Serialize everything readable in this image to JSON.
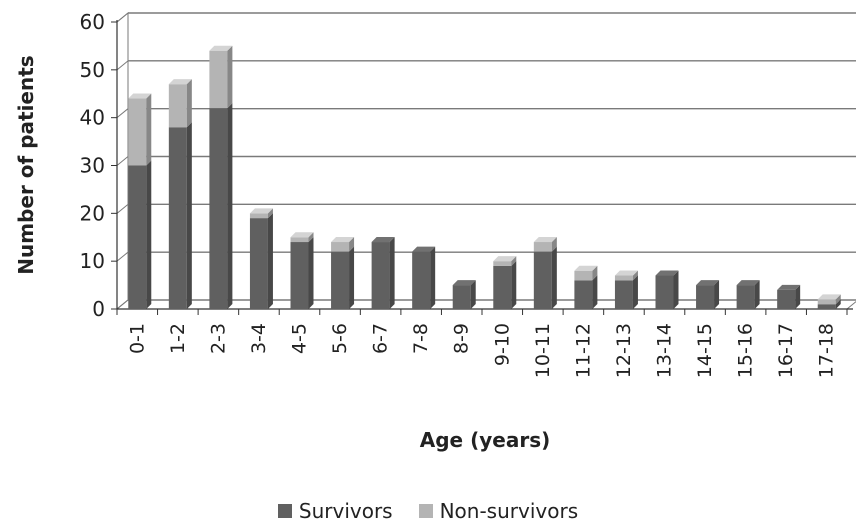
{
  "chart_data": {
    "type": "bar",
    "stacked": true,
    "style": "3d",
    "xlabel": "Age (years)",
    "ylabel": "Number of patients",
    "ylim": [
      0,
      60
    ],
    "yticks": [
      0,
      10,
      20,
      30,
      40,
      50,
      60
    ],
    "grid": true,
    "legend_position": "bottom",
    "categories": [
      "0-1",
      "1-2",
      "2-3",
      "3-4",
      "4-5",
      "5-6",
      "6-7",
      "7-8",
      "8-9",
      "9-10",
      "10-11",
      "11-12",
      "12-13",
      "13-14",
      "14-15",
      "15-16",
      "16-17",
      "17-18"
    ],
    "series": [
      {
        "name": "Survivors",
        "color": "#606060",
        "values": [
          30,
          38,
          42,
          19,
          14,
          12,
          14,
          12,
          5,
          9,
          12,
          6,
          6,
          7,
          5,
          5,
          4,
          1
        ]
      },
      {
        "name": "Non-survivors",
        "color": "#b4b4b4",
        "values": [
          14,
          9,
          12,
          1,
          1,
          2,
          0,
          0,
          0,
          1,
          2,
          2,
          1,
          0,
          0,
          0,
          0,
          1
        ]
      }
    ]
  }
}
